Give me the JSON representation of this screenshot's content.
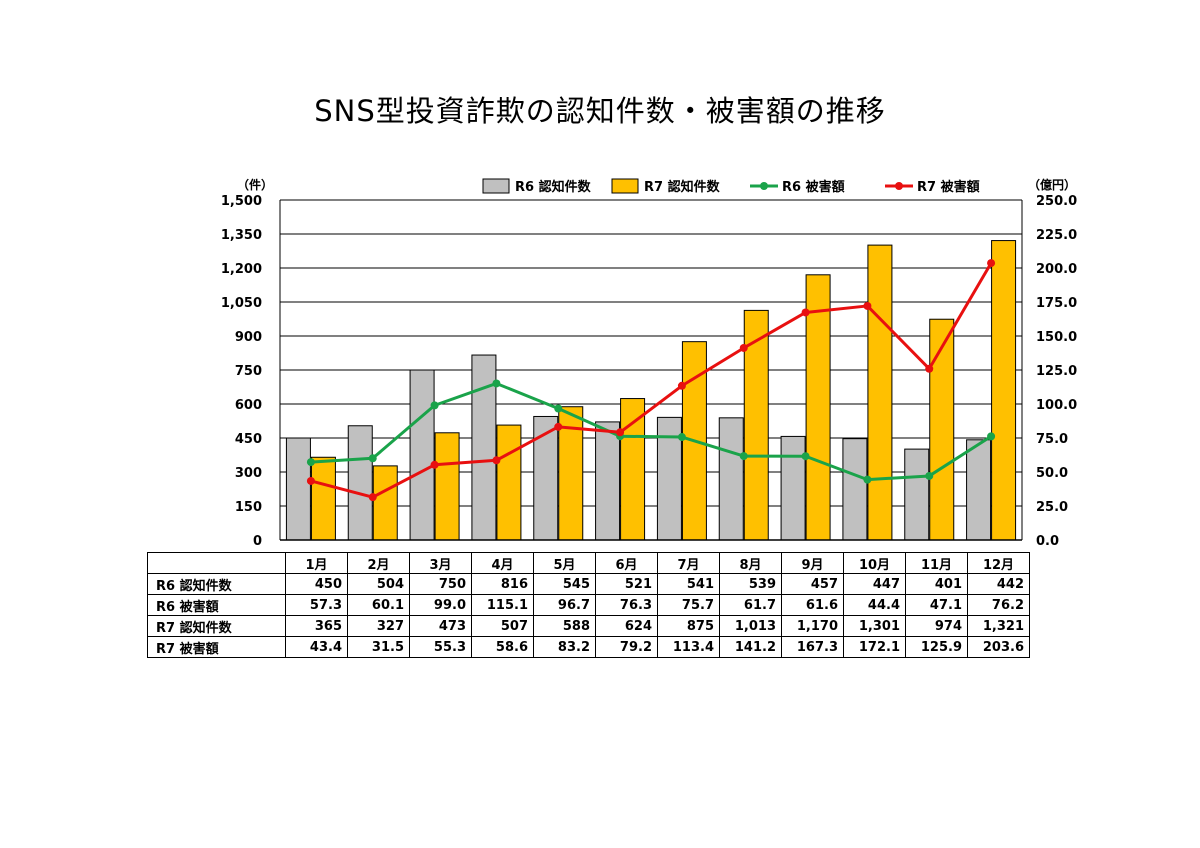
{
  "title": "SNS型投資詐欺の認知件数・被害額の推移",
  "chart_data": {
    "type": "bar",
    "categories": [
      "1月",
      "2月",
      "3月",
      "4月",
      "5月",
      "6月",
      "7月",
      "8月",
      "9月",
      "10月",
      "11月",
      "12月"
    ],
    "series": [
      {
        "name": "R6 認知件数",
        "kind": "bar",
        "axis": "left",
        "color": "#c0c0c0",
        "values": [
          450,
          504,
          750,
          816,
          545,
          521,
          541,
          539,
          457,
          447,
          401,
          442
        ]
      },
      {
        "name": "R7 認知件数",
        "kind": "bar",
        "axis": "left",
        "color": "#ffc000",
        "values": [
          365,
          327,
          473,
          507,
          588,
          624,
          875,
          1013,
          1170,
          1301,
          974,
          1321
        ]
      },
      {
        "name": "R6 被害額",
        "kind": "line",
        "axis": "right",
        "color": "#1aa34a",
        "values": [
          57.3,
          60.1,
          99.0,
          115.1,
          96.7,
          76.3,
          75.7,
          61.7,
          61.6,
          44.4,
          47.1,
          76.2
        ]
      },
      {
        "name": "R7 被害額",
        "kind": "line",
        "axis": "right",
        "color": "#e81010",
        "values": [
          43.4,
          31.5,
          55.3,
          58.6,
          83.2,
          79.2,
          113.4,
          141.2,
          167.3,
          172.1,
          125.9,
          203.6
        ]
      }
    ],
    "yleft": {
      "unit": "（件）",
      "ylim": [
        0,
        1500
      ],
      "ticks": [
        "0",
        "150",
        "300",
        "450",
        "600",
        "750",
        "900",
        "1,050",
        "1,200",
        "1,350",
        "1,500"
      ]
    },
    "yright": {
      "unit": "（億円）",
      "ylim": [
        0,
        250
      ],
      "ticks": [
        "0.0",
        "25.0",
        "50.0",
        "75.0",
        "100.0",
        "125.0",
        "150.0",
        "175.0",
        "200.0",
        "225.0",
        "250.0"
      ]
    },
    "grid": true,
    "legend": "top"
  },
  "table": {
    "rows": [
      {
        "label": "R6 認知件数",
        "cells": [
          "450",
          "504",
          "750",
          "816",
          "545",
          "521",
          "541",
          "539",
          "457",
          "447",
          "401",
          "442"
        ]
      },
      {
        "label": "R6 被害額",
        "cells": [
          "57.3",
          "60.1",
          "99.0",
          "115.1",
          "96.7",
          "76.3",
          "75.7",
          "61.7",
          "61.6",
          "44.4",
          "47.1",
          "76.2"
        ]
      },
      {
        "label": "R7 認知件数",
        "cells": [
          "365",
          "327",
          "473",
          "507",
          "588",
          "624",
          "875",
          "1,013",
          "1,170",
          "1,301",
          "974",
          "1,321"
        ]
      },
      {
        "label": "R7 被害額",
        "cells": [
          "43.4",
          "31.5",
          "55.3",
          "58.6",
          "83.2",
          "79.2",
          "113.4",
          "141.2",
          "167.3",
          "172.1",
          "125.9",
          "203.6"
        ]
      }
    ]
  }
}
